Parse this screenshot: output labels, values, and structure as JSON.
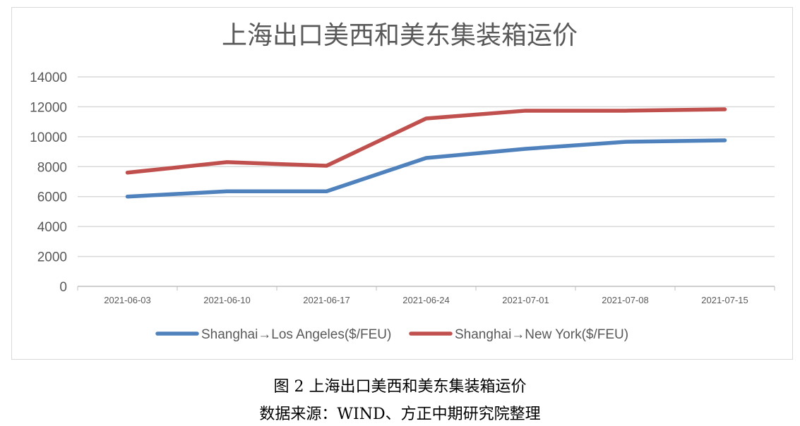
{
  "chart_data": {
    "type": "line",
    "title": "上海出口美西和美东集装箱运价",
    "categories": [
      "2021-06-03",
      "2021-06-10",
      "2021-06-17",
      "2021-06-24",
      "2021-07-01",
      "2021-07-08",
      "2021-07-15"
    ],
    "yticks": [
      "0",
      "2000",
      "4000",
      "6000",
      "8000",
      "10000",
      "12000",
      "14000"
    ],
    "ylim": [
      0,
      14000
    ],
    "grid": true,
    "legend_position": "bottom",
    "series": [
      {
        "name": "Shanghai→Los Angeles($/FEU)",
        "color": "#4f81bd",
        "values": [
          6000,
          6350,
          6350,
          8580,
          9190,
          9660,
          9760
        ]
      },
      {
        "name": "Shanghai→New York($/FEU)",
        "color": "#c0504d",
        "values": [
          7600,
          8300,
          8060,
          11220,
          11740,
          11740,
          11830
        ]
      }
    ]
  },
  "captions": {
    "figure": "图 2 上海出口美西和美东集装箱运价",
    "source": "数据来源：WIND、方正中期研究院整理"
  }
}
